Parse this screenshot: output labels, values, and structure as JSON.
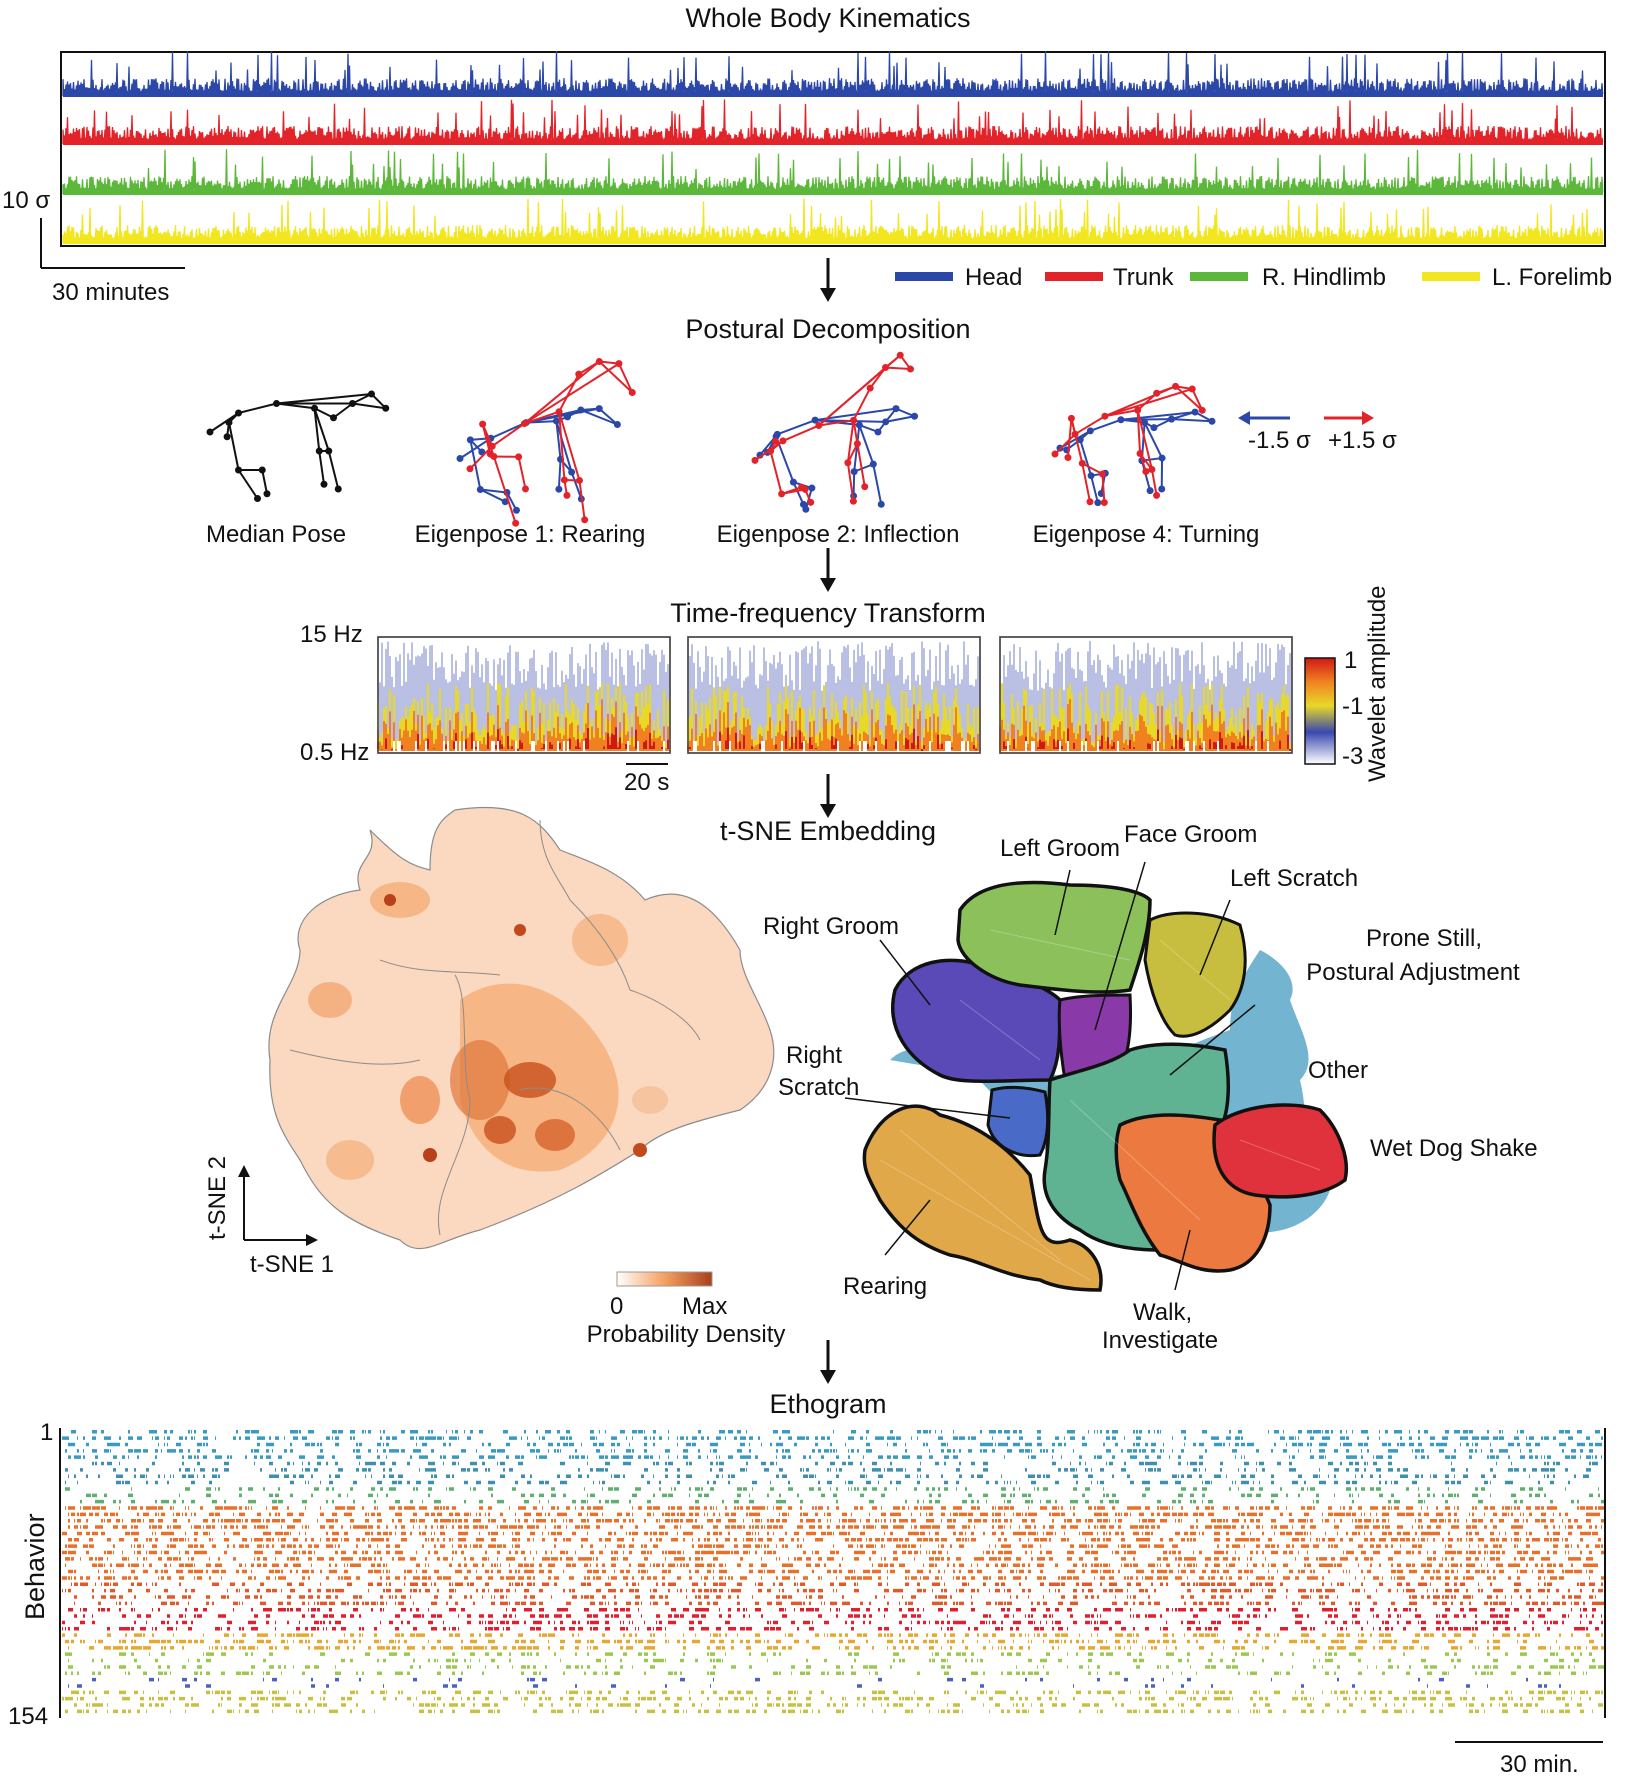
{
  "kinematics": {
    "title": "Whole Body Kinematics",
    "scale_y": "10 σ",
    "scale_x": "30 minutes",
    "legend": [
      {
        "name": "Head",
        "color": "#2b48a8"
      },
      {
        "name": "Trunk",
        "color": "#e3232a"
      },
      {
        "name": "R. Hindlimb",
        "color": "#5cb83a"
      },
      {
        "name": "L. Forelimb",
        "color": "#f2e61f"
      }
    ]
  },
  "postural": {
    "title": "Postural Decomposition",
    "poses": [
      "Median Pose",
      "Eigenpose 1: Rearing",
      "Eigenpose 2: Inflection",
      "Eigenpose 4: Turning"
    ],
    "neg_label": "-1.5 σ",
    "pos_label": "+1.5 σ",
    "neg_color": "#2b48a8",
    "pos_color": "#e3232a"
  },
  "timefreq": {
    "title": "Time-frequency Transform",
    "freq_high": "15 Hz",
    "freq_low": "0.5 Hz",
    "scale": "20 s",
    "colorbar_label": "Wavelet amplitude",
    "colorbar_ticks": [
      "1",
      "-1",
      "-3"
    ]
  },
  "tsne": {
    "title": "t-SNE Embedding",
    "axis1": "t-SNE 1",
    "axis2": "t-SNE 2",
    "density_min": "0",
    "density_max": "Max",
    "density_label": "Probability Density",
    "clusters": [
      {
        "name": "Left Groom",
        "color": "#8cc05a"
      },
      {
        "name": "Face Groom",
        "color": "#8a3aa8"
      },
      {
        "name": "Left Scratch",
        "color": "#c7bd3e"
      },
      {
        "name": "Right Groom",
        "color": "#5a4ab8"
      },
      {
        "name": "Prone Still,",
        "name2": "Postural Adjustment",
        "color": "#5fb392"
      },
      {
        "name": "Right",
        "name2": "Scratch",
        "color": "#4a6ac8"
      },
      {
        "name": "Other",
        "color": "#5aa8c8"
      },
      {
        "name": "Wet Dog Shake",
        "color": "#e0323c"
      },
      {
        "name": "Rearing",
        "color": "#e0a848"
      },
      {
        "name": "Walk,",
        "name2": "Investigate",
        "color": "#ec7a40"
      }
    ]
  },
  "ethogram": {
    "title": "Ethogram",
    "ylabel": "Behavior",
    "y_top": "1",
    "y_bottom": "154",
    "scale": "30 min.",
    "bands": [
      {
        "color": "#3a9ac0"
      },
      {
        "color": "#3f8fb0"
      },
      {
        "color": "#5fb070"
      },
      {
        "color": "#e8702a"
      },
      {
        "color": "#e8702a"
      },
      {
        "color": "#e35a2a"
      },
      {
        "color": "#e0202e"
      },
      {
        "color": "#e8a830"
      },
      {
        "color": "#9cc850"
      },
      {
        "color": "#4a62c0"
      },
      {
        "color": "#c8c040"
      }
    ]
  }
}
